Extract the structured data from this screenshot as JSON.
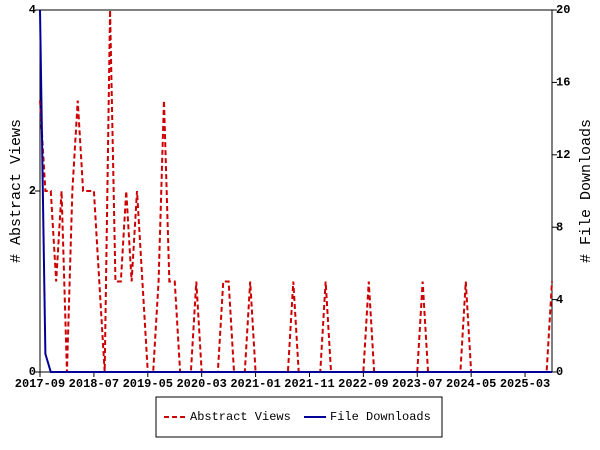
{
  "chart_data": {
    "type": "line",
    "categories": [
      "2017-09",
      null,
      null,
      null,
      null,
      null,
      null,
      null,
      null,
      null,
      "2018-07",
      null,
      null,
      null,
      null,
      null,
      null,
      null,
      null,
      null,
      "2019-05",
      null,
      null,
      null,
      null,
      null,
      null,
      null,
      null,
      null,
      "2020-03",
      null,
      null,
      null,
      null,
      null,
      null,
      null,
      null,
      null,
      "2021-01",
      null,
      null,
      null,
      null,
      null,
      null,
      null,
      null,
      null,
      "2021-11",
      null,
      null,
      null,
      null,
      null,
      null,
      null,
      null,
      null,
      "2022-09",
      null,
      null,
      null,
      null,
      null,
      null,
      null,
      null,
      null,
      "2023-07",
      null,
      null,
      null,
      null,
      null,
      null,
      null,
      null,
      null,
      "2024-05",
      null,
      null,
      null,
      null,
      null,
      null,
      null,
      null,
      null,
      "2025-03",
      null,
      null,
      null,
      null,
      null
    ],
    "y_label": "# Abstract Views",
    "y2_label": "# File Downloads",
    "ylim": [
      0,
      4
    ],
    "yticks": [
      0,
      2,
      4
    ],
    "y2lim": [
      0,
      20
    ],
    "y2ticks": [
      0,
      4,
      8,
      12,
      16,
      20
    ],
    "legend": "bottom",
    "series": [
      {
        "name": "Abstract Views",
        "color": "#cc0000",
        "dash": true,
        "values": [
          3,
          2,
          2,
          1,
          2,
          0,
          2,
          3,
          2,
          2,
          2,
          1,
          0,
          4,
          1,
          1,
          2,
          1,
          2,
          1,
          0,
          0,
          1,
          3,
          1,
          1,
          0,
          0,
          0,
          1,
          0,
          0,
          0,
          0,
          1,
          1,
          0,
          0,
          0,
          1,
          0,
          0,
          0,
          0,
          0,
          0,
          0,
          1,
          0,
          0,
          0,
          0,
          0,
          1,
          0,
          0,
          0,
          0,
          0,
          0,
          0,
          1,
          0,
          0,
          0,
          0,
          0,
          0,
          0,
          0,
          0,
          1,
          0,
          0,
          0,
          0,
          0,
          0,
          0,
          1,
          0,
          0,
          0,
          0,
          0,
          0,
          0,
          0,
          0,
          0,
          0,
          0,
          0,
          0,
          0,
          1
        ]
      },
      {
        "name": "File Downloads",
        "color": "#000099",
        "axis": "y2",
        "values": [
          20,
          1,
          0,
          0,
          0,
          0,
          0,
          0,
          0,
          0,
          0,
          0,
          0,
          0,
          0,
          0,
          0,
          0,
          0,
          0,
          0,
          0,
          0,
          0,
          0,
          0,
          0,
          0,
          0,
          0,
          0,
          0,
          0,
          0,
          0,
          0,
          0,
          0,
          0,
          0,
          0,
          0,
          0,
          0,
          0,
          0,
          0,
          0,
          0,
          0,
          0,
          0,
          0,
          0,
          0,
          0,
          0,
          0,
          0,
          0,
          0,
          0,
          0,
          0,
          0,
          0,
          0,
          0,
          0,
          0,
          0,
          0,
          0,
          0,
          0,
          0,
          0,
          0,
          0,
          0,
          0,
          0,
          0,
          0,
          0,
          0,
          0,
          0,
          0,
          0,
          0,
          0,
          0,
          0,
          0,
          0
        ]
      }
    ]
  }
}
